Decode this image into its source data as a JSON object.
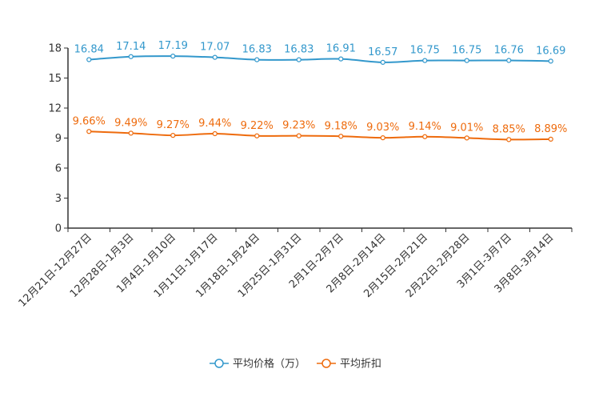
{
  "chart_data": {
    "type": "line",
    "categories": [
      "12月21日-12月27日",
      "12月28日-1月3日",
      "1月4日-1月10日",
      "1月11日-1月17日",
      "1月18日-1月24日",
      "1月25日-1月31日",
      "2月1日-2月7日",
      "2月8日-2月14日",
      "2月15日-2月21日",
      "2月22日-2月28日",
      "3月1日-3月7日",
      "3月8日-3月14日"
    ],
    "ylim": [
      0,
      18
    ],
    "yticks": [
      0,
      3,
      6,
      9,
      12,
      15,
      18
    ],
    "series": [
      {
        "name": "平均价格（万）",
        "color": "#3398cc",
        "values": [
          16.84,
          17.14,
          17.19,
          17.07,
          16.83,
          16.83,
          16.91,
          16.57,
          16.75,
          16.75,
          16.76,
          16.69
        ],
        "labels": [
          "16.84",
          "17.14",
          "17.19",
          "17.07",
          "16.83",
          "16.83",
          "16.91",
          "16.57",
          "16.75",
          "16.75",
          "16.76",
          "16.69"
        ]
      },
      {
        "name": "平均折扣",
        "color": "#ee6b0d",
        "values": [
          9.66,
          9.49,
          9.27,
          9.44,
          9.22,
          9.23,
          9.18,
          9.03,
          9.14,
          9.01,
          8.85,
          8.89
        ],
        "labels": [
          "9.66%",
          "9.49%",
          "9.27%",
          "9.44%",
          "9.22%",
          "9.23%",
          "9.18%",
          "9.03%",
          "9.14%",
          "9.01%",
          "8.85%",
          "8.89%"
        ]
      }
    ],
    "legend_position": "bottom-center"
  }
}
